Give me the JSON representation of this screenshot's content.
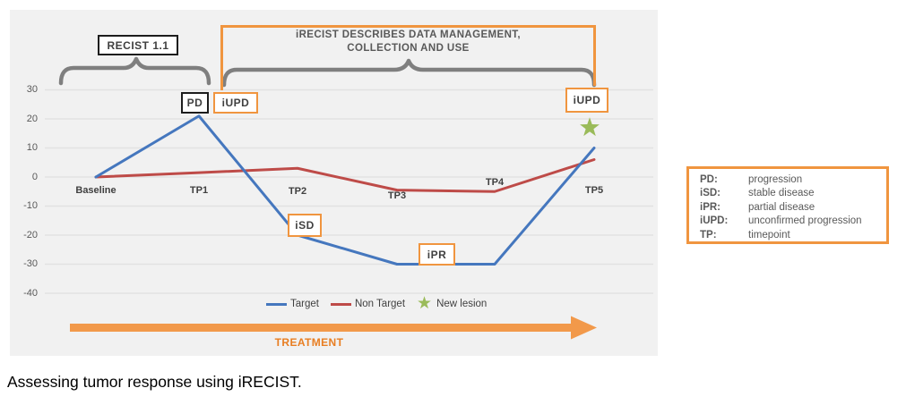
{
  "caption": "Assessing tumor response using iRECIST.",
  "chart_data": {
    "type": "line",
    "categories": [
      "Baseline",
      "TP1",
      "TP2",
      "TP3",
      "TP4",
      "TP5"
    ],
    "series": [
      {
        "name": "Target",
        "color": "#4577BE",
        "values": [
          0,
          21,
          -20,
          -30,
          -30,
          10
        ]
      },
      {
        "name": "Non Target",
        "color": "#BE4B48",
        "values": [
          0,
          1.5,
          3,
          -4.5,
          -5,
          6
        ]
      }
    ],
    "new_lesion_marker": {
      "name": "New lesion",
      "color": "#9ABB59",
      "category": "TP5",
      "value": 17
    },
    "yticks": [
      30,
      20,
      10,
      0,
      -10,
      -20,
      -30,
      -40
    ],
    "ylim": [
      -45,
      35
    ],
    "grid": true,
    "legend_position": "bottom",
    "title": ""
  },
  "annotations": {
    "recist_label": "RECIST 1.1",
    "irecist_note_line1": "iRECIST DESCRIBES DATA MANAGEMENT,",
    "irecist_note_line2": "COLLECTION AND USE",
    "pd": "PD",
    "iupd_tp1": "iUPD",
    "isd": "iSD",
    "ipr": "iPR",
    "iupd_tp5": "iUPD",
    "treatment_label": "TREATMENT"
  },
  "key_box": {
    "rows": [
      {
        "term": "PD:",
        "definition": "progression"
      },
      {
        "term": "iSD:",
        "definition": "stable disease"
      },
      {
        "term": "iPR:",
        "definition": "partial disease"
      },
      {
        "term": "iUPD:",
        "definition": "unconfirmed progression"
      },
      {
        "term": "TP:",
        "definition": "timepoint"
      }
    ]
  },
  "colors": {
    "orange_accent": "#F0953F",
    "arrow_orange": "#F2994A",
    "treatment_text": "#E87E22",
    "brace_gray": "#7F7F7F",
    "gridline": "#e2e2e2",
    "target_blue": "#4577BE",
    "non_target_red": "#BE4B48",
    "new_lesion_green": "#9ABB59",
    "panel_bg": "#f1f1f1"
  }
}
